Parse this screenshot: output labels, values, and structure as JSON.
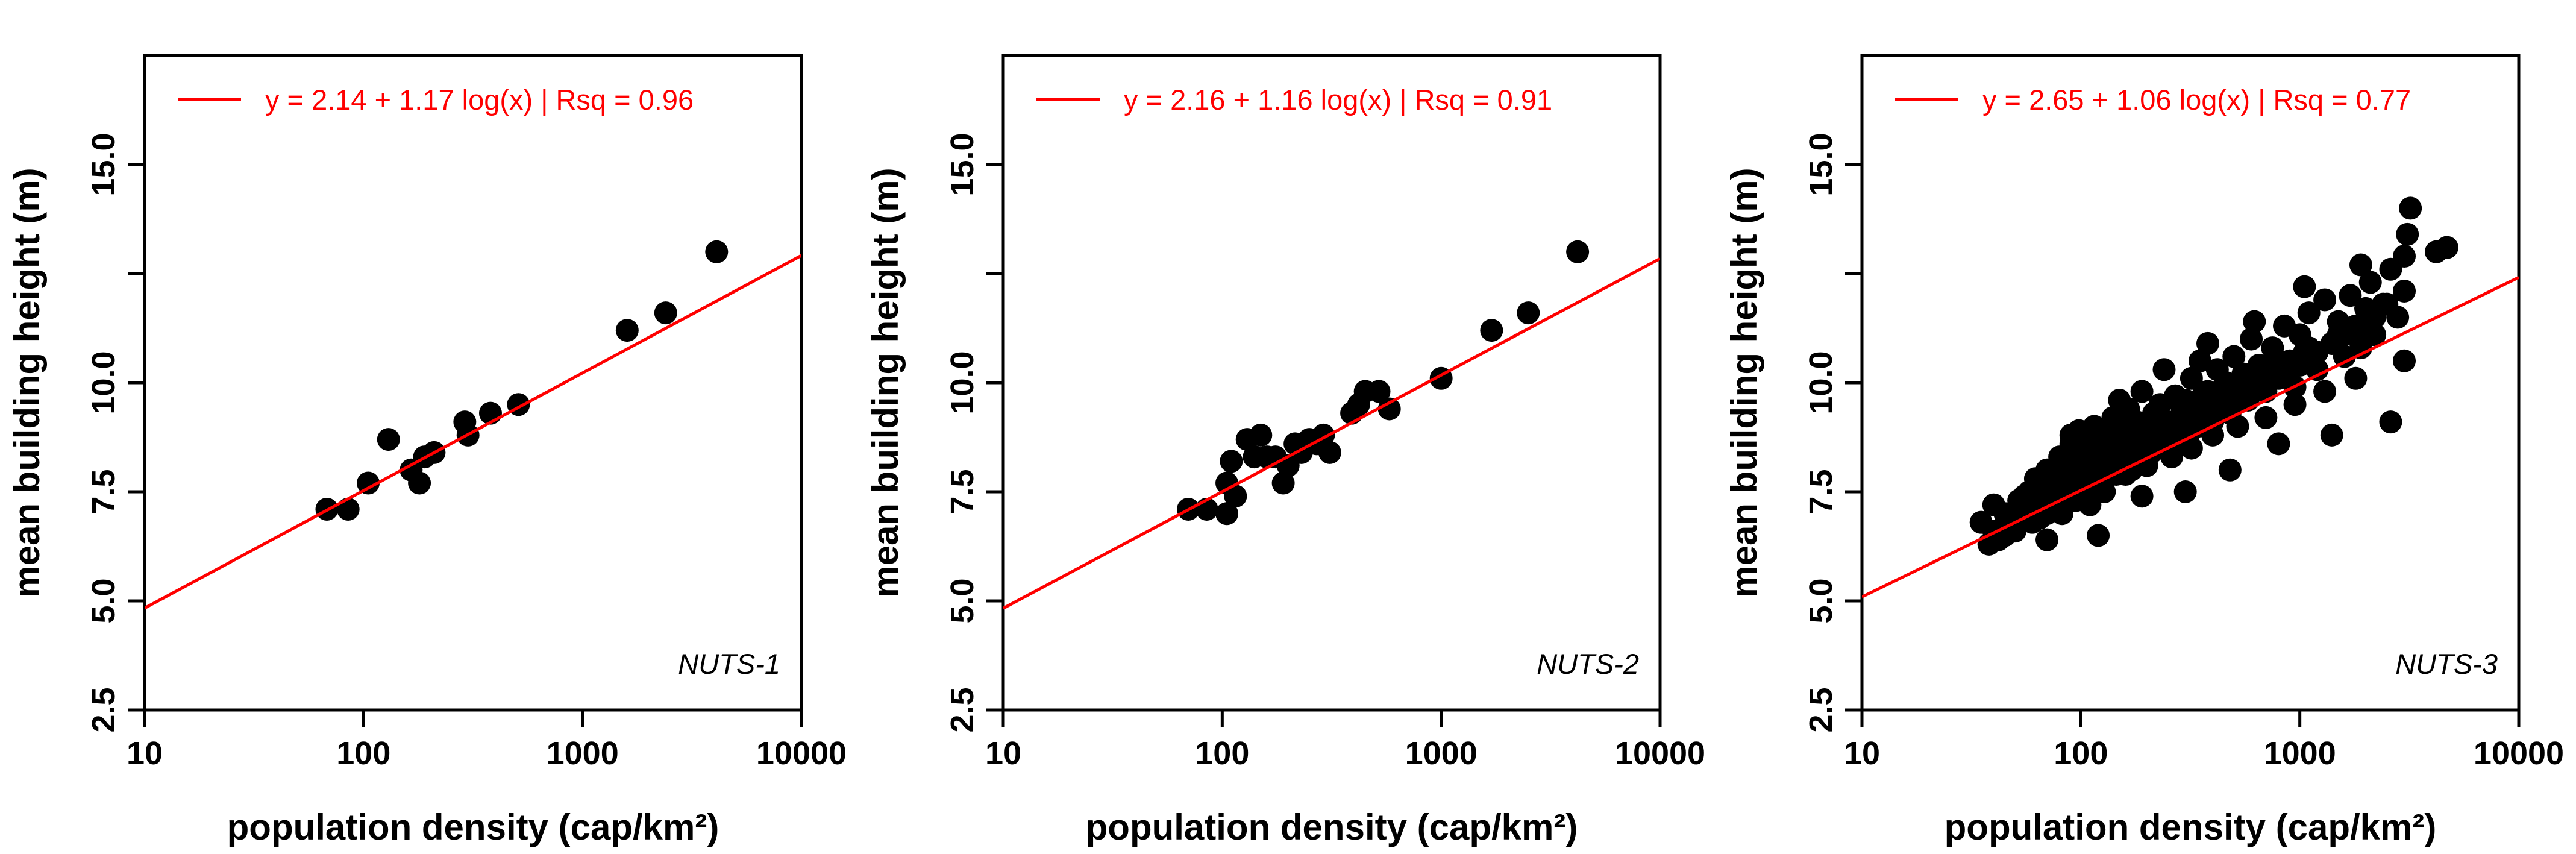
{
  "figure": {
    "colors": {
      "points": "#000000",
      "fit_line": "#ff0000",
      "axes": "#000000",
      "background": "#ffffff"
    }
  },
  "chart_data": [
    {
      "type": "scatter",
      "title": "",
      "xlabel": "population density (cap/km²)",
      "ylabel": "mean building height (m)",
      "xscale": "log",
      "xlim": [
        10,
        10000
      ],
      "ylim": [
        2.5,
        17.5
      ],
      "xticks": [
        "10",
        "100",
        "1000",
        "10000"
      ],
      "yticks": [
        "2.5",
        "5.0",
        "7.5",
        "10.0",
        "15.0"
      ],
      "grid": false,
      "legend": {
        "placement": "top-left",
        "entries": [
          {
            "label": "y = 2.14 + 1.17 log(x) | Rsq = 0.96",
            "color": "#ff0000"
          }
        ]
      },
      "fit": {
        "intercept": 2.14,
        "slope": 1.17
      },
      "annotation": "NUTS-1",
      "series": [
        {
          "x": [
            68,
            85,
            105,
            130,
            165,
            180,
            190,
            210,
            290,
            300,
            380,
            510,
            1600,
            2400,
            4100
          ],
          "y": [
            7.1,
            7.1,
            7.7,
            8.7,
            8.0,
            7.7,
            8.3,
            8.4,
            9.1,
            8.8,
            9.3,
            9.5,
            11.2,
            11.6,
            13.0
          ]
        }
      ]
    },
    {
      "type": "scatter",
      "title": "",
      "xlabel": "population density (cap/km²)",
      "ylabel": "mean building height (m)",
      "xscale": "log",
      "xlim": [
        10,
        10000
      ],
      "ylim": [
        2.5,
        17.5
      ],
      "xticks": [
        "10",
        "100",
        "1000",
        "10000"
      ],
      "yticks": [
        "2.5",
        "5.0",
        "7.5",
        "10.0",
        "15.0"
      ],
      "grid": false,
      "legend": {
        "placement": "top-left",
        "entries": [
          {
            "label": "y = 2.16 + 1.16 log(x) | Rsq = 0.91",
            "color": "#ff0000"
          }
        ]
      },
      "fit": {
        "intercept": 2.16,
        "slope": 1.16
      },
      "annotation": "NUTS-2",
      "series": [
        {
          "x": [
            70,
            85,
            105,
            105,
            110,
            115,
            130,
            140,
            150,
            160,
            175,
            190,
            200,
            215,
            230,
            250,
            270,
            290,
            310,
            390,
            420,
            450,
            520,
            580,
            1000,
            1700,
            2500,
            4200
          ],
          "y": [
            7.1,
            7.1,
            7.0,
            7.7,
            8.2,
            7.4,
            8.7,
            8.3,
            8.8,
            8.3,
            8.3,
            7.7,
            8.1,
            8.6,
            8.4,
            8.7,
            8.6,
            8.8,
            8.4,
            9.3,
            9.5,
            9.8,
            9.8,
            9.4,
            10.1,
            11.2,
            11.6,
            13.0
          ]
        }
      ]
    },
    {
      "type": "scatter",
      "title": "",
      "xlabel": "population density (cap/km²)",
      "ylabel": "mean building height (m)",
      "xscale": "log",
      "xlim": [
        10,
        10000
      ],
      "ylim": [
        2.5,
        17.5
      ],
      "xticks": [
        "10",
        "100",
        "1000",
        "10000"
      ],
      "yticks": [
        "2.5",
        "5.0",
        "7.5",
        "10.0",
        "15.0"
      ],
      "grid": false,
      "legend": {
        "placement": "top-left",
        "entries": [
          {
            "label": "y = 2.65 + 1.06 log(x) | Rsq = 0.77",
            "color": "#ff0000"
          }
        ]
      },
      "fit": {
        "intercept": 2.65,
        "slope": 1.06
      },
      "annotation": "NUTS-3",
      "series": [
        {
          "x": [
            35,
            38,
            40,
            42,
            45,
            48,
            50,
            52,
            55,
            58,
            60,
            62,
            65,
            68,
            70,
            72,
            75,
            78,
            80,
            82,
            85,
            88,
            90,
            92,
            95,
            98,
            100,
            102,
            105,
            108,
            110,
            112,
            115,
            118,
            120,
            125,
            128,
            130,
            135,
            140,
            145,
            150,
            155,
            160,
            165,
            170,
            175,
            180,
            185,
            190,
            195,
            200,
            210,
            215,
            220,
            230,
            240,
            250,
            260,
            270,
            280,
            290,
            300,
            310,
            320,
            330,
            340,
            350,
            360,
            380,
            400,
            420,
            440,
            460,
            480,
            500,
            520,
            550,
            580,
            600,
            650,
            700,
            750,
            800,
            850,
            900,
            950,
            1000,
            1050,
            1100,
            1200,
            1300,
            1400,
            1500,
            1600,
            1700,
            1800,
            1900,
            2000,
            2100,
            2200,
            2400,
            2600,
            2800,
            3000,
            3100,
            3200,
            3000,
            4200,
            4700,
            40,
            45,
            50,
            55,
            60,
            65,
            70,
            75,
            80,
            85,
            90,
            95,
            100,
            105,
            110,
            115,
            120,
            125,
            130,
            135,
            140,
            150,
            160,
            170,
            180,
            190,
            200,
            220,
            240,
            260,
            280,
            300,
            320,
            340,
            360,
            380,
            400,
            450,
            500,
            550,
            600,
            700,
            800,
            900,
            1000,
            1200,
            1400,
            1600,
            1800,
            2000,
            2500,
            3000,
            55,
            65,
            75,
            85,
            95,
            110,
            125,
            140,
            160,
            180,
            200,
            230,
            260,
            290,
            320,
            360,
            400,
            450,
            520,
            600,
            700,
            800,
            950,
            1100,
            1300,
            1500,
            1800,
            2200,
            70,
            90,
            120,
            150,
            190,
            240,
            300,
            380,
            480,
            620,
            800,
            1050,
            1400,
            1900,
            2600
          ],
          "y": [
            6.8,
            6.3,
            7.2,
            6.4,
            6.5,
            7.0,
            6.8,
            7.3,
            6.9,
            7.5,
            7.1,
            7.8,
            6.9,
            7.6,
            8.0,
            7.2,
            7.9,
            7.4,
            8.3,
            7.0,
            8.1,
            7.7,
            8.6,
            7.3,
            8.2,
            8.9,
            7.6,
            8.4,
            7.9,
            8.7,
            7.2,
            8.5,
            9.0,
            7.8,
            8.3,
            8.8,
            7.5,
            8.1,
            8.6,
            9.2,
            7.9,
            8.4,
            8.9,
            8.2,
            9.4,
            8.0,
            8.7,
            9.1,
            8.3,
            9.8,
            8.6,
            9.0,
            8.4,
            9.3,
            8.8,
            9.5,
            8.5,
            9.1,
            8.9,
            9.7,
            8.6,
            9.2,
            9.6,
            8.8,
            10.1,
            9.3,
            9.0,
            10.5,
            9.4,
            9.8,
            9.1,
            10.3,
            9.6,
            10.0,
            9.3,
            10.6,
            9.9,
            10.2,
            9.6,
            11.0,
            10.4,
            9.8,
            10.8,
            10.1,
            11.3,
            10.5,
            9.9,
            11.1,
            10.7,
            11.6,
            10.3,
            11.9,
            10.9,
            11.4,
            10.6,
            12.0,
            11.2,
            10.8,
            11.7,
            12.3,
            11.1,
            11.8,
            12.6,
            11.5,
            12.9,
            13.4,
            14.0,
            10.5,
            13.0,
            13.1,
            6.6,
            7.0,
            6.6,
            7.2,
            6.8,
            7.4,
            7.0,
            7.6,
            7.2,
            7.7,
            7.4,
            7.9,
            7.5,
            8.0,
            7.6,
            8.1,
            7.8,
            8.2,
            7.9,
            8.4,
            8.0,
            8.3,
            8.5,
            8.2,
            8.6,
            8.4,
            8.7,
            8.6,
            8.8,
            8.7,
            9.0,
            8.9,
            9.1,
            9.0,
            9.3,
            9.2,
            9.4,
            9.5,
            9.7,
            9.6,
            9.9,
            10.0,
            10.2,
            10.3,
            10.4,
            10.7,
            10.9,
            11.1,
            11.3,
            11.4,
            11.8,
            12.1,
            7.4,
            7.8,
            7.1,
            8.1,
            7.3,
            8.4,
            7.7,
            8.6,
            7.9,
            8.9,
            8.1,
            9.2,
            8.3,
            9.4,
            8.5,
            9.7,
            8.8,
            9.9,
            9.0,
            10.2,
            9.2,
            10.5,
            9.5,
            10.8,
            9.8,
            11.1,
            10.1,
            11.5,
            6.4,
            8.8,
            6.5,
            9.6,
            7.4,
            10.3,
            7.5,
            10.9,
            8.0,
            11.4,
            8.6,
            12.2,
            8.8,
            12.7,
            9.1
          ]
        }
      ]
    }
  ]
}
